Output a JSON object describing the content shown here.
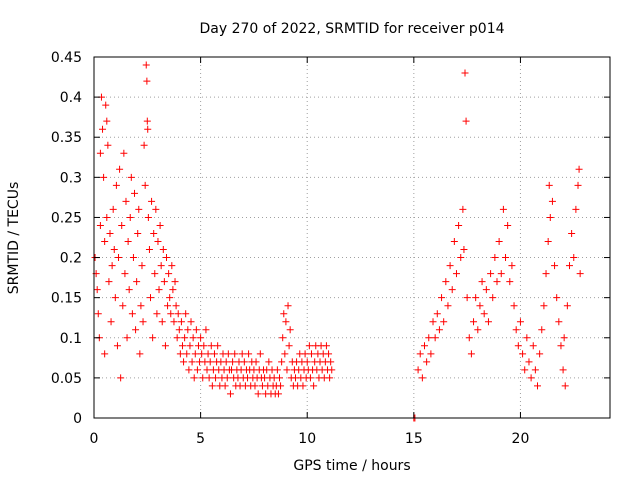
{
  "chart_data": {
    "type": "scatter",
    "title": "Day 270 of 2022, SRMTID for receiver p014",
    "xlabel": "GPS time / hours",
    "ylabel": "SRMTID / TECUs",
    "xlim": [
      0,
      24.2
    ],
    "ylim": [
      0,
      0.45
    ],
    "xticks": [
      0,
      5,
      10,
      15,
      20
    ],
    "xtick_labels": [
      "0",
      "5",
      "10",
      "15",
      "20"
    ],
    "yticks": [
      0,
      0.05,
      0.1,
      0.15,
      0.2,
      0.25,
      0.3,
      0.35,
      0.4,
      0.45
    ],
    "ytick_labels": [
      "0",
      "0.05",
      "0.1",
      "0.15",
      "0.2",
      "0.25",
      "0.3",
      "0.35",
      "0.4",
      "0.45"
    ],
    "grid": true,
    "marker": "+",
    "marker_color": "#ff0000",
    "series": [
      {
        "name": "SRMTID",
        "points": [
          [
            0.05,
            0.2
          ],
          [
            0.1,
            0.18
          ],
          [
            0.15,
            0.16
          ],
          [
            0.2,
            0.13
          ],
          [
            0.25,
            0.1
          ],
          [
            0.3,
            0.24
          ],
          [
            0.3,
            0.33
          ],
          [
            0.35,
            0.4
          ],
          [
            0.4,
            0.36
          ],
          [
            0.45,
            0.3
          ],
          [
            0.5,
            0.22
          ],
          [
            0.5,
            0.08
          ],
          [
            0.55,
            0.39
          ],
          [
            0.6,
            0.37
          ],
          [
            0.6,
            0.25
          ],
          [
            0.65,
            0.34
          ],
          [
            0.7,
            0.17
          ],
          [
            0.75,
            0.23
          ],
          [
            0.8,
            0.12
          ],
          [
            0.85,
            0.19
          ],
          [
            0.9,
            0.26
          ],
          [
            0.95,
            0.21
          ],
          [
            1.0,
            0.15
          ],
          [
            1.05,
            0.29
          ],
          [
            1.1,
            0.09
          ],
          [
            1.15,
            0.2
          ],
          [
            1.2,
            0.31
          ],
          [
            1.25,
            0.05
          ],
          [
            1.3,
            0.24
          ],
          [
            1.35,
            0.14
          ],
          [
            1.4,
            0.33
          ],
          [
            1.45,
            0.18
          ],
          [
            1.5,
            0.27
          ],
          [
            1.55,
            0.1
          ],
          [
            1.6,
            0.22
          ],
          [
            1.65,
            0.16
          ],
          [
            1.7,
            0.25
          ],
          [
            1.75,
            0.3
          ],
          [
            1.8,
            0.13
          ],
          [
            1.85,
            0.2
          ],
          [
            1.9,
            0.28
          ],
          [
            1.95,
            0.11
          ],
          [
            2.0,
            0.17
          ],
          [
            2.05,
            0.23
          ],
          [
            2.1,
            0.26
          ],
          [
            2.15,
            0.08
          ],
          [
            2.2,
            0.14
          ],
          [
            2.25,
            0.19
          ],
          [
            2.3,
            0.12
          ],
          [
            2.35,
            0.34
          ],
          [
            2.4,
            0.29
          ],
          [
            2.45,
            0.44
          ],
          [
            2.48,
            0.42
          ],
          [
            2.5,
            0.37
          ],
          [
            2.52,
            0.36
          ],
          [
            2.55,
            0.25
          ],
          [
            2.6,
            0.21
          ],
          [
            2.65,
            0.15
          ],
          [
            2.7,
            0.27
          ],
          [
            2.75,
            0.1
          ],
          [
            2.8,
            0.23
          ],
          [
            2.85,
            0.18
          ],
          [
            2.9,
            0.26
          ],
          [
            2.95,
            0.13
          ],
          [
            3.0,
            0.22
          ],
          [
            3.05,
            0.16
          ],
          [
            3.1,
            0.24
          ],
          [
            3.15,
            0.19
          ],
          [
            3.2,
            0.12
          ],
          [
            3.25,
            0.21
          ],
          [
            3.3,
            0.17
          ],
          [
            3.35,
            0.09
          ],
          [
            3.4,
            0.2
          ],
          [
            3.45,
            0.14
          ],
          [
            3.5,
            0.18
          ],
          [
            3.55,
            0.15
          ],
          [
            3.6,
            0.13
          ],
          [
            3.65,
            0.19
          ],
          [
            3.7,
            0.16
          ],
          [
            3.75,
            0.12
          ],
          [
            3.8,
            0.17
          ],
          [
            3.85,
            0.14
          ],
          [
            3.9,
            0.1
          ],
          [
            3.95,
            0.13
          ],
          [
            4.0,
            0.11
          ],
          [
            4.05,
            0.08
          ],
          [
            4.1,
            0.12
          ],
          [
            4.15,
            0.09
          ],
          [
            4.2,
            0.07
          ],
          [
            4.25,
            0.1
          ],
          [
            4.3,
            0.13
          ],
          [
            4.35,
            0.08
          ],
          [
            4.4,
            0.11
          ],
          [
            4.45,
            0.06
          ],
          [
            4.5,
            0.09
          ],
          [
            4.55,
            0.12
          ],
          [
            4.6,
            0.07
          ],
          [
            4.65,
            0.1
          ],
          [
            4.7,
            0.05
          ],
          [
            4.75,
            0.08
          ],
          [
            4.8,
            0.11
          ],
          [
            4.85,
            0.06
          ],
          [
            4.9,
            0.09
          ],
          [
            4.95,
            0.07
          ],
          [
            5.0,
            0.1
          ],
          [
            5.05,
            0.08
          ],
          [
            5.1,
            0.05
          ],
          [
            5.15,
            0.09
          ],
          [
            5.2,
            0.07
          ],
          [
            5.25,
            0.11
          ],
          [
            5.3,
            0.06
          ],
          [
            5.35,
            0.08
          ],
          [
            5.4,
            0.05
          ],
          [
            5.45,
            0.07
          ],
          [
            5.5,
            0.09
          ],
          [
            5.55,
            0.04
          ],
          [
            5.6,
            0.06
          ],
          [
            5.65,
            0.08
          ],
          [
            5.7,
            0.05
          ],
          [
            5.75,
            0.07
          ],
          [
            5.8,
            0.09
          ],
          [
            5.85,
            0.06
          ],
          [
            5.9,
            0.04
          ],
          [
            5.95,
            0.07
          ],
          [
            6.0,
            0.05
          ],
          [
            6.05,
            0.08
          ],
          [
            6.1,
            0.06
          ],
          [
            6.15,
            0.04
          ],
          [
            6.2,
            0.07
          ],
          [
            6.25,
            0.05
          ],
          [
            6.3,
            0.08
          ],
          [
            6.35,
            0.06
          ],
          [
            6.4,
            0.03
          ],
          [
            6.45,
            0.06
          ],
          [
            6.5,
            0.07
          ],
          [
            6.55,
            0.05
          ],
          [
            6.6,
            0.08
          ],
          [
            6.65,
            0.04
          ],
          [
            6.7,
            0.06
          ],
          [
            6.75,
            0.05
          ],
          [
            6.8,
            0.07
          ],
          [
            6.85,
            0.04
          ],
          [
            6.9,
            0.06
          ],
          [
            6.95,
            0.08
          ],
          [
            7.0,
            0.05
          ],
          [
            7.05,
            0.07
          ],
          [
            7.1,
            0.04
          ],
          [
            7.15,
            0.06
          ],
          [
            7.2,
            0.05
          ],
          [
            7.25,
            0.08
          ],
          [
            7.3,
            0.06
          ],
          [
            7.35,
            0.04
          ],
          [
            7.4,
            0.07
          ],
          [
            7.45,
            0.05
          ],
          [
            7.5,
            0.06
          ],
          [
            7.55,
            0.04
          ],
          [
            7.6,
            0.07
          ],
          [
            7.65,
            0.05
          ],
          [
            7.7,
            0.03
          ],
          [
            7.75,
            0.06
          ],
          [
            7.8,
            0.08
          ],
          [
            7.85,
            0.05
          ],
          [
            7.9,
            0.04
          ],
          [
            7.95,
            0.06
          ],
          [
            8.0,
            0.05
          ],
          [
            8.05,
            0.03
          ],
          [
            8.1,
            0.06
          ],
          [
            8.15,
            0.04
          ],
          [
            8.2,
            0.07
          ],
          [
            8.25,
            0.05
          ],
          [
            8.3,
            0.03
          ],
          [
            8.35,
            0.06
          ],
          [
            8.4,
            0.04
          ],
          [
            8.45,
            0.05
          ],
          [
            8.5,
            0.03
          ],
          [
            8.55,
            0.04
          ],
          [
            8.6,
            0.06
          ],
          [
            8.65,
            0.03
          ],
          [
            8.7,
            0.05
          ],
          [
            8.75,
            0.04
          ],
          [
            8.8,
            0.07
          ],
          [
            8.85,
            0.1
          ],
          [
            8.9,
            0.13
          ],
          [
            8.95,
            0.08
          ],
          [
            9.0,
            0.12
          ],
          [
            9.05,
            0.06
          ],
          [
            9.1,
            0.14
          ],
          [
            9.15,
            0.09
          ],
          [
            9.2,
            0.11
          ],
          [
            9.25,
            0.05
          ],
          [
            9.3,
            0.07
          ],
          [
            9.35,
            0.04
          ],
          [
            9.4,
            0.06
          ],
          [
            9.45,
            0.05
          ],
          [
            9.5,
            0.07
          ],
          [
            9.55,
            0.04
          ],
          [
            9.6,
            0.06
          ],
          [
            9.65,
            0.08
          ],
          [
            9.7,
            0.05
          ],
          [
            9.75,
            0.07
          ],
          [
            9.8,
            0.04
          ],
          [
            9.85,
            0.06
          ],
          [
            9.9,
            0.08
          ],
          [
            9.95,
            0.05
          ],
          [
            10.0,
            0.07
          ],
          [
            10.05,
            0.06
          ],
          [
            10.1,
            0.09
          ],
          [
            10.15,
            0.05
          ],
          [
            10.2,
            0.08
          ],
          [
            10.25,
            0.06
          ],
          [
            10.3,
            0.04
          ],
          [
            10.35,
            0.07
          ],
          [
            10.4,
            0.09
          ],
          [
            10.45,
            0.06
          ],
          [
            10.5,
            0.08
          ],
          [
            10.55,
            0.05
          ],
          [
            10.6,
            0.07
          ],
          [
            10.65,
            0.09
          ],
          [
            10.7,
            0.06
          ],
          [
            10.75,
            0.08
          ],
          [
            10.8,
            0.05
          ],
          [
            10.85,
            0.07
          ],
          [
            10.9,
            0.09
          ],
          [
            10.95,
            0.06
          ],
          [
            11.0,
            0.08
          ],
          [
            11.05,
            0.05
          ],
          [
            11.1,
            0.07
          ],
          [
            11.15,
            0.06
          ],
          [
            15.0,
            0.0
          ],
          [
            15.05,
            0.0
          ],
          [
            15.2,
            0.06
          ],
          [
            15.3,
            0.08
          ],
          [
            15.4,
            0.05
          ],
          [
            15.5,
            0.09
          ],
          [
            15.6,
            0.07
          ],
          [
            15.7,
            0.1
          ],
          [
            15.8,
            0.08
          ],
          [
            15.9,
            0.12
          ],
          [
            16.0,
            0.1
          ],
          [
            16.1,
            0.13
          ],
          [
            16.2,
            0.11
          ],
          [
            16.3,
            0.15
          ],
          [
            16.4,
            0.12
          ],
          [
            16.5,
            0.17
          ],
          [
            16.6,
            0.14
          ],
          [
            16.7,
            0.19
          ],
          [
            16.8,
            0.16
          ],
          [
            16.9,
            0.22
          ],
          [
            17.0,
            0.18
          ],
          [
            17.1,
            0.24
          ],
          [
            17.2,
            0.2
          ],
          [
            17.3,
            0.26
          ],
          [
            17.35,
            0.21
          ],
          [
            17.4,
            0.43
          ],
          [
            17.45,
            0.37
          ],
          [
            17.5,
            0.15
          ],
          [
            17.6,
            0.1
          ],
          [
            17.7,
            0.08
          ],
          [
            17.8,
            0.12
          ],
          [
            17.9,
            0.15
          ],
          [
            18.0,
            0.11
          ],
          [
            18.1,
            0.14
          ],
          [
            18.2,
            0.17
          ],
          [
            18.3,
            0.13
          ],
          [
            18.4,
            0.16
          ],
          [
            18.5,
            0.12
          ],
          [
            18.6,
            0.18
          ],
          [
            18.7,
            0.15
          ],
          [
            18.8,
            0.2
          ],
          [
            18.9,
            0.17
          ],
          [
            19.0,
            0.22
          ],
          [
            19.1,
            0.18
          ],
          [
            19.2,
            0.26
          ],
          [
            19.3,
            0.2
          ],
          [
            19.4,
            0.24
          ],
          [
            19.5,
            0.17
          ],
          [
            19.6,
            0.19
          ],
          [
            19.7,
            0.14
          ],
          [
            19.8,
            0.11
          ],
          [
            19.9,
            0.09
          ],
          [
            20.0,
            0.12
          ],
          [
            20.1,
            0.08
          ],
          [
            20.2,
            0.06
          ],
          [
            20.3,
            0.1
          ],
          [
            20.4,
            0.07
          ],
          [
            20.5,
            0.05
          ],
          [
            20.6,
            0.09
          ],
          [
            20.7,
            0.06
          ],
          [
            20.8,
            0.04
          ],
          [
            20.9,
            0.08
          ],
          [
            21.0,
            0.11
          ],
          [
            21.1,
            0.14
          ],
          [
            21.2,
            0.18
          ],
          [
            21.3,
            0.22
          ],
          [
            21.35,
            0.29
          ],
          [
            21.4,
            0.25
          ],
          [
            21.5,
            0.27
          ],
          [
            21.6,
            0.19
          ],
          [
            21.7,
            0.15
          ],
          [
            21.8,
            0.12
          ],
          [
            21.9,
            0.09
          ],
          [
            22.0,
            0.06
          ],
          [
            22.05,
            0.1
          ],
          [
            22.1,
            0.04
          ],
          [
            22.2,
            0.14
          ],
          [
            22.3,
            0.19
          ],
          [
            22.4,
            0.23
          ],
          [
            22.5,
            0.2
          ],
          [
            22.6,
            0.26
          ],
          [
            22.7,
            0.29
          ],
          [
            22.75,
            0.31
          ],
          [
            22.8,
            0.18
          ]
        ]
      }
    ]
  }
}
